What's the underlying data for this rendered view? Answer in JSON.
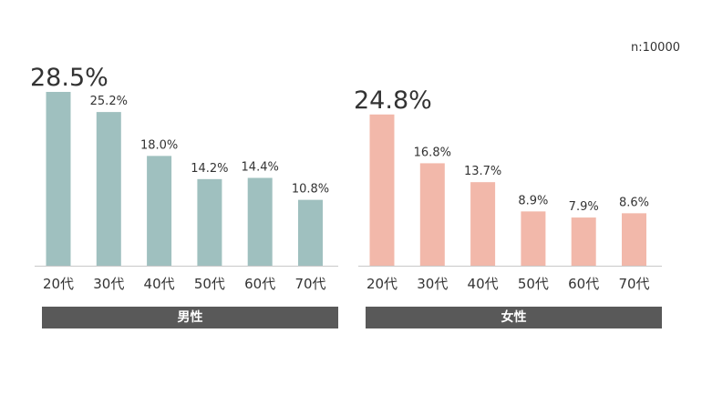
{
  "chart_data": [
    {
      "type": "bar",
      "title": "",
      "xlabel": "",
      "ylabel": "",
      "ylim": [
        0,
        28.5
      ],
      "categories": [
        "20代",
        "30代",
        "40代",
        "50代",
        "60代",
        "70代"
      ],
      "series": [
        {
          "name": "男性",
          "values": [
            28.5,
            25.2,
            18.0,
            14.2,
            14.4,
            10.8
          ]
        }
      ],
      "value_labels": [
        "28.5%",
        "25.2%",
        "18.0%",
        "14.2%",
        "14.4%",
        "10.8%"
      ],
      "color": "#9fc0bf",
      "grid": false,
      "legend": "none"
    },
    {
      "type": "bar",
      "title": "",
      "xlabel": "",
      "ylabel": "",
      "ylim": [
        0,
        28.5
      ],
      "categories": [
        "20代",
        "30代",
        "40代",
        "50代",
        "60代",
        "70代"
      ],
      "series": [
        {
          "name": "女性",
          "values": [
            24.8,
            16.8,
            13.7,
            8.9,
            7.9,
            8.6
          ]
        }
      ],
      "value_labels": [
        "24.8%",
        "16.8%",
        "13.7%",
        "8.9%",
        "7.9%",
        "8.6%"
      ],
      "color": "#f2b8aa",
      "grid": false,
      "legend": "none"
    }
  ],
  "sample_size": "n:10000",
  "panel_labels": [
    "男性",
    "女性"
  ]
}
